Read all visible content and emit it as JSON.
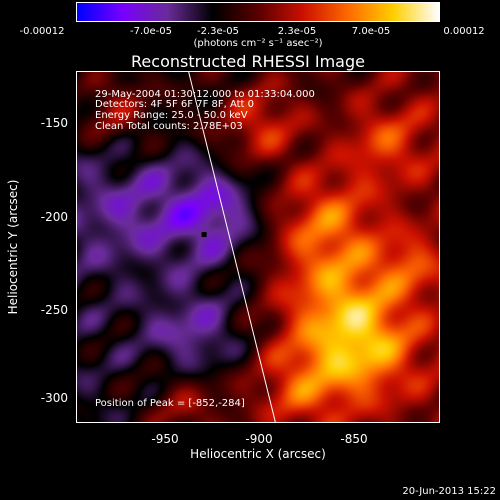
{
  "colorbar": {
    "tick_labels": [
      "-0.00012",
      "-7.0e-05",
      "-2.3e-05",
      "2.3e-05",
      "7.0e-05",
      "0.00012"
    ],
    "units": "(photons cm⁻² s⁻¹ asec⁻²)",
    "colormap": [
      "#0000ff",
      "#7a00ff",
      "#6a2c9a",
      "#000000",
      "#5a0000",
      "#cc1100",
      "#ff6a00",
      "#ffd000",
      "#ffffff"
    ]
  },
  "title": "Reconstructed RHESSI Image",
  "info": {
    "time_range": "29-May-2004 01:30:12.000 to 01:33:04.000",
    "detectors": "Detectors: 4F 5F 6F 7F 8F, Att 0",
    "energy_range": "Energy Range: 25.0 - 50.0 keV",
    "clean": "Clean     Total counts: 2.78E+03",
    "peak": "Position of Peak = [-852,-284]"
  },
  "axes": {
    "xlabel": "Heliocentric X (arcsec)",
    "ylabel": "Heliocentric Y (arcsec)",
    "xticks": [
      "-950",
      "-900",
      "-850"
    ],
    "yticks": [
      "-150",
      "-200",
      "-250",
      "-300"
    ]
  },
  "chart_data": {
    "type": "heatmap",
    "title": "Reconstructed RHESSI Image",
    "xlabel": "Heliocentric X (arcsec)",
    "ylabel": "Heliocentric Y (arcsec)",
    "xlim": [
      -998,
      -810
    ],
    "ylim": [
      -313,
      -130
    ],
    "zlim": [
      -0.00012,
      0.00012
    ],
    "xticks": [
      -950,
      -900,
      -850
    ],
    "yticks": [
      -150,
      -200,
      -250,
      -300
    ],
    "peak": [
      -852,
      -284
    ],
    "limb_line": [
      [
        -940,
        -130
      ],
      [
        -895,
        -313
      ]
    ],
    "marker": [
      -932,
      -215
    ]
  },
  "footer": {
    "date": "20-Jun-2013 15:22"
  }
}
